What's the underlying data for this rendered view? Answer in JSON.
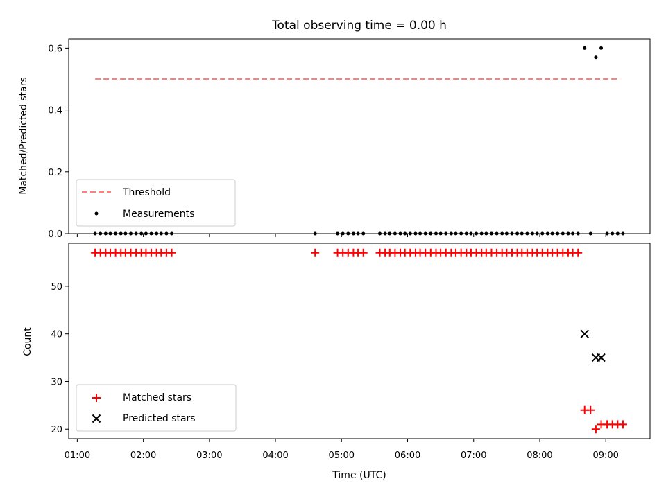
{
  "chart_data": [
    {
      "type": "scatter",
      "title": "Total observing time = 0.00 h",
      "ylabel": "Matched/Predicted stars",
      "xlabel": "",
      "xlim": [
        0.87,
        9.67
      ],
      "ylim": [
        0,
        0.63
      ],
      "yticks": [
        0.0,
        0.2,
        0.4,
        0.6
      ],
      "ytick_labels": [
        "0.0",
        "0.2",
        "0.4",
        "0.6"
      ],
      "legend_position": "lower-left",
      "threshold": {
        "name": "Threshold",
        "value": 0.5,
        "x_start": 1.27,
        "x_end": 9.22,
        "color": "#ff7f7f"
      },
      "series": [
        {
          "name": "Measurements",
          "color": "#000000",
          "marker": "dot",
          "x": [
            1.27,
            1.35,
            1.43,
            1.5,
            1.58,
            1.66,
            1.73,
            1.81,
            1.89,
            1.97,
            2.04,
            2.12,
            2.2,
            2.27,
            2.35,
            2.43,
            4.6,
            4.94,
            5.02,
            5.1,
            5.18,
            5.25,
            5.33,
            5.58,
            5.66,
            5.73,
            5.81,
            5.89,
            5.96,
            6.04,
            6.12,
            6.19,
            6.27,
            6.35,
            6.43,
            6.5,
            6.58,
            6.66,
            6.73,
            6.81,
            6.89,
            6.96,
            7.04,
            7.12,
            7.19,
            7.27,
            7.35,
            7.43,
            7.5,
            7.58,
            7.66,
            7.73,
            7.81,
            7.89,
            7.96,
            8.04,
            8.12,
            8.19,
            8.27,
            8.35,
            8.43,
            8.5,
            8.58,
            8.68,
            8.77,
            8.85,
            8.93,
            9.02,
            9.1,
            9.18,
            9.26
          ],
          "y": [
            0,
            0,
            0,
            0,
            0,
            0,
            0,
            0,
            0,
            0,
            0,
            0,
            0,
            0,
            0,
            0,
            0,
            0,
            0,
            0,
            0,
            0,
            0,
            0,
            0,
            0,
            0,
            0,
            0,
            0,
            0,
            0,
            0,
            0,
            0,
            0,
            0,
            0,
            0,
            0,
            0,
            0,
            0,
            0,
            0,
            0,
            0,
            0,
            0,
            0,
            0,
            0,
            0,
            0,
            0,
            0,
            0,
            0,
            0,
            0,
            0,
            0,
            0,
            0.6,
            0,
            0.57,
            0.6,
            0,
            0,
            0,
            0
          ]
        }
      ]
    },
    {
      "type": "scatter",
      "title": "",
      "xlabel": "Time (UTC)",
      "ylabel": "Count",
      "xlim": [
        0.87,
        9.67
      ],
      "ylim": [
        18.0,
        59.0
      ],
      "yticks": [
        20,
        30,
        40,
        50
      ],
      "ytick_labels": [
        "20",
        "30",
        "40",
        "50"
      ],
      "xticks": [
        1,
        2,
        3,
        4,
        5,
        6,
        7,
        8,
        9
      ],
      "xtick_labels": [
        "01:00",
        "02:00",
        "03:00",
        "04:00",
        "05:00",
        "06:00",
        "07:00",
        "08:00",
        "09:00"
      ],
      "legend_position": "lower-left",
      "series": [
        {
          "name": "Matched stars",
          "color": "#ff0000",
          "marker": "plus",
          "x": [
            1.27,
            1.35,
            1.43,
            1.5,
            1.58,
            1.66,
            1.73,
            1.81,
            1.89,
            1.97,
            2.04,
            2.12,
            2.2,
            2.27,
            2.35,
            2.43,
            4.6,
            4.94,
            5.02,
            5.1,
            5.18,
            5.25,
            5.33,
            5.58,
            5.66,
            5.73,
            5.81,
            5.89,
            5.96,
            6.04,
            6.12,
            6.19,
            6.27,
            6.35,
            6.43,
            6.5,
            6.58,
            6.66,
            6.73,
            6.81,
            6.89,
            6.96,
            7.04,
            7.12,
            7.19,
            7.27,
            7.35,
            7.43,
            7.5,
            7.58,
            7.66,
            7.73,
            7.81,
            7.89,
            7.96,
            8.04,
            8.12,
            8.19,
            8.27,
            8.35,
            8.43,
            8.5,
            8.58,
            8.68,
            8.77,
            8.85,
            8.93,
            9.02,
            9.1,
            9.18,
            9.26
          ],
          "y": [
            57,
            57,
            57,
            57,
            57,
            57,
            57,
            57,
            57,
            57,
            57,
            57,
            57,
            57,
            57,
            57,
            57,
            57,
            57,
            57,
            57,
            57,
            57,
            57,
            57,
            57,
            57,
            57,
            57,
            57,
            57,
            57,
            57,
            57,
            57,
            57,
            57,
            57,
            57,
            57,
            57,
            57,
            57,
            57,
            57,
            57,
            57,
            57,
            57,
            57,
            57,
            57,
            57,
            57,
            57,
            57,
            57,
            57,
            57,
            57,
            57,
            57,
            57,
            24,
            24,
            20,
            21,
            21,
            21,
            21,
            21
          ]
        },
        {
          "name": "Predicted stars",
          "color": "#000000",
          "marker": "x",
          "x": [
            8.68,
            8.85,
            8.93
          ],
          "y": [
            40,
            35,
            35
          ]
        }
      ]
    }
  ]
}
